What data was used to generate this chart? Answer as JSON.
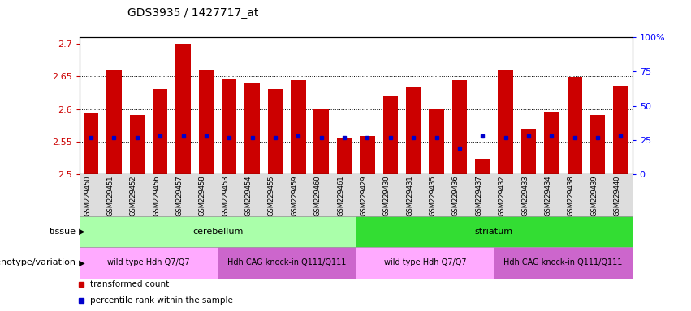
{
  "title": "GDS3935 / 1427717_at",
  "samples": [
    "GSM229450",
    "GSM229451",
    "GSM229452",
    "GSM229456",
    "GSM229457",
    "GSM229458",
    "GSM229453",
    "GSM229454",
    "GSM229455",
    "GSM229459",
    "GSM229460",
    "GSM229461",
    "GSM229429",
    "GSM229430",
    "GSM229431",
    "GSM229435",
    "GSM229436",
    "GSM229437",
    "GSM229432",
    "GSM229433",
    "GSM229434",
    "GSM229438",
    "GSM229439",
    "GSM229440"
  ],
  "bar_values": [
    2.593,
    2.661,
    2.591,
    2.631,
    2.7,
    2.661,
    2.645,
    2.64,
    2.631,
    2.644,
    2.601,
    2.555,
    2.558,
    2.619,
    2.633,
    2.601,
    2.644,
    2.524,
    2.661,
    2.57,
    2.596,
    2.649,
    2.591,
    2.636
  ],
  "dot_values": [
    2.556,
    2.556,
    2.556,
    2.558,
    2.558,
    2.558,
    2.556,
    2.556,
    2.556,
    2.558,
    2.556,
    2.556,
    2.556,
    2.556,
    2.556,
    2.556,
    2.54,
    2.558,
    2.556,
    2.558,
    2.558,
    2.556,
    2.556,
    2.558
  ],
  "ylim": [
    2.5,
    2.71
  ],
  "yticks": [
    2.5,
    2.55,
    2.6,
    2.65,
    2.7
  ],
  "ytick_labels": [
    "2.5",
    "2.55",
    "2.6",
    "2.65",
    "2.7"
  ],
  "right_ytick_pcts": [
    0,
    25,
    50,
    75,
    100
  ],
  "right_ytick_labels": [
    "0",
    "25",
    "50",
    "75",
    "100%"
  ],
  "bar_color": "#cc0000",
  "dot_color": "#0000cc",
  "tissue_groups": [
    {
      "label": "cerebellum",
      "start": 0,
      "end": 11,
      "color": "#aaffaa"
    },
    {
      "label": "striatum",
      "start": 12,
      "end": 23,
      "color": "#33dd33"
    }
  ],
  "genotype_groups": [
    {
      "label": "wild type Hdh Q7/Q7",
      "start": 0,
      "end": 5,
      "color": "#ffaaff"
    },
    {
      "label": "Hdh CAG knock-in Q111/Q111",
      "start": 6,
      "end": 11,
      "color": "#cc66cc"
    },
    {
      "label": "wild type Hdh Q7/Q7",
      "start": 12,
      "end": 17,
      "color": "#ffaaff"
    },
    {
      "label": "Hdh CAG knock-in Q111/Q111",
      "start": 18,
      "end": 23,
      "color": "#cc66cc"
    }
  ],
  "tissue_label": "tissue",
  "genotype_label": "genotype/variation",
  "legend_items": [
    {
      "label": "transformed count",
      "color": "#cc0000"
    },
    {
      "label": "percentile rank within the sample",
      "color": "#0000cc"
    }
  ],
  "bg_color": "#dddddd"
}
